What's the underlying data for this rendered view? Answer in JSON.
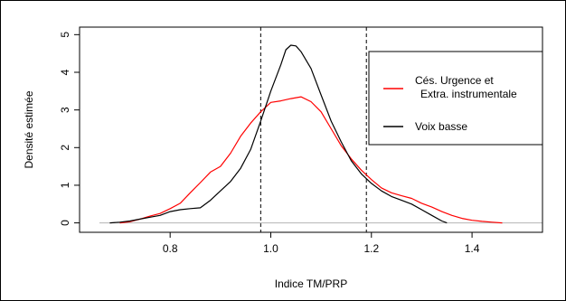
{
  "chart_data": {
    "type": "line",
    "title": "",
    "xlabel": "Indice TM/PRP",
    "ylabel": "Densité estimée",
    "xlim": [
      0.62,
      1.54
    ],
    "ylim": [
      -0.25,
      5.2
    ],
    "x_ticks": [
      0.8,
      1.0,
      1.2,
      1.4
    ],
    "x_tick_labels": [
      "0.8",
      "1.0",
      "1.2",
      "1.4"
    ],
    "y_ticks": [
      0,
      1,
      2,
      3,
      4,
      5
    ],
    "y_tick_labels": [
      "0",
      "1",
      "2",
      "3",
      "4",
      "5"
    ],
    "grid": false,
    "legend_position": "right",
    "baseline": 0,
    "vlines": [
      0.98,
      1.19
    ],
    "series": [
      {
        "name": "Cés. Urgence et\nExtra. instrumentale",
        "legend_lines": [
          "Cés. Urgence et",
          "Extra. instrumentale"
        ],
        "color": "#ff0000",
        "points": [
          [
            0.7,
            0.0
          ],
          [
            0.72,
            0.03
          ],
          [
            0.74,
            0.1
          ],
          [
            0.76,
            0.18
          ],
          [
            0.78,
            0.25
          ],
          [
            0.8,
            0.38
          ],
          [
            0.82,
            0.52
          ],
          [
            0.84,
            0.8
          ],
          [
            0.86,
            1.07
          ],
          [
            0.88,
            1.35
          ],
          [
            0.9,
            1.5
          ],
          [
            0.92,
            1.85
          ],
          [
            0.94,
            2.3
          ],
          [
            0.96,
            2.65
          ],
          [
            0.98,
            2.95
          ],
          [
            1.0,
            3.2
          ],
          [
            1.02,
            3.24
          ],
          [
            1.04,
            3.3
          ],
          [
            1.06,
            3.35
          ],
          [
            1.08,
            3.22
          ],
          [
            1.1,
            2.95
          ],
          [
            1.12,
            2.5
          ],
          [
            1.14,
            2.05
          ],
          [
            1.16,
            1.7
          ],
          [
            1.18,
            1.4
          ],
          [
            1.2,
            1.15
          ],
          [
            1.22,
            0.93
          ],
          [
            1.24,
            0.8
          ],
          [
            1.26,
            0.72
          ],
          [
            1.28,
            0.65
          ],
          [
            1.3,
            0.52
          ],
          [
            1.32,
            0.42
          ],
          [
            1.34,
            0.3
          ],
          [
            1.36,
            0.2
          ],
          [
            1.38,
            0.12
          ],
          [
            1.4,
            0.07
          ],
          [
            1.42,
            0.04
          ],
          [
            1.44,
            0.02
          ],
          [
            1.46,
            0.0
          ]
        ]
      },
      {
        "name": "Voix basse",
        "legend_lines": [
          "Voix basse"
        ],
        "color": "#000000",
        "points": [
          [
            0.68,
            0.0
          ],
          [
            0.7,
            0.02
          ],
          [
            0.72,
            0.05
          ],
          [
            0.74,
            0.1
          ],
          [
            0.76,
            0.15
          ],
          [
            0.78,
            0.2
          ],
          [
            0.8,
            0.3
          ],
          [
            0.82,
            0.35
          ],
          [
            0.84,
            0.38
          ],
          [
            0.86,
            0.4
          ],
          [
            0.88,
            0.6
          ],
          [
            0.9,
            0.85
          ],
          [
            0.92,
            1.1
          ],
          [
            0.94,
            1.45
          ],
          [
            0.96,
            1.95
          ],
          [
            0.98,
            2.7
          ],
          [
            1.0,
            3.5
          ],
          [
            1.02,
            4.2
          ],
          [
            1.03,
            4.6
          ],
          [
            1.04,
            4.72
          ],
          [
            1.05,
            4.7
          ],
          [
            1.06,
            4.55
          ],
          [
            1.08,
            4.1
          ],
          [
            1.1,
            3.4
          ],
          [
            1.12,
            2.7
          ],
          [
            1.14,
            2.15
          ],
          [
            1.16,
            1.65
          ],
          [
            1.18,
            1.3
          ],
          [
            1.2,
            1.05
          ],
          [
            1.22,
            0.85
          ],
          [
            1.24,
            0.7
          ],
          [
            1.26,
            0.6
          ],
          [
            1.28,
            0.5
          ],
          [
            1.3,
            0.35
          ],
          [
            1.32,
            0.2
          ],
          [
            1.34,
            0.05
          ],
          [
            1.35,
            0.0
          ]
        ]
      }
    ]
  }
}
